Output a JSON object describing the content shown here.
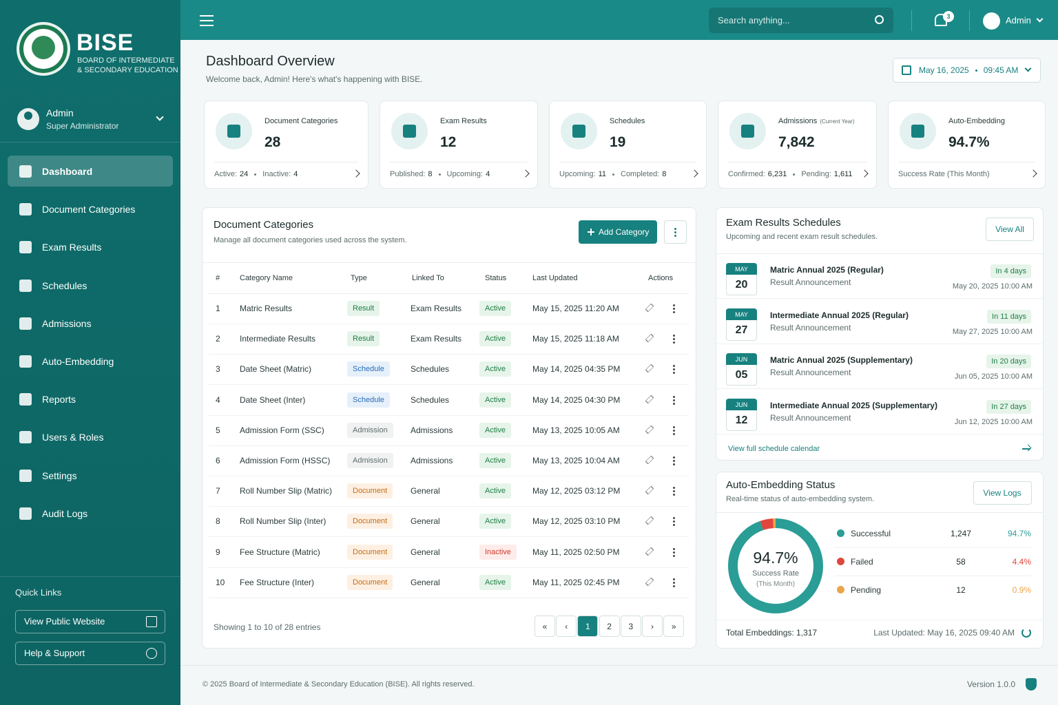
{
  "brand": {
    "name": "BISE",
    "line1": "BOARD OF INTERMEDIATE",
    "line2": "& SECONDARY EDUCATION"
  },
  "user": {
    "name": "Admin",
    "role": "Super Administrator"
  },
  "nav": [
    "Dashboard",
    "Document Categories",
    "Exam Results",
    "Schedules",
    "Admissions",
    "Auto-Embedding",
    "Reports",
    "Users & Roles",
    "Settings",
    "Audit Logs"
  ],
  "quick_links": {
    "title": "Quick Links",
    "items": [
      "View Public Website",
      "Help & Support"
    ]
  },
  "topbar": {
    "search_placeholder": "Search anything...",
    "notifications": "3",
    "user": "Admin"
  },
  "header": {
    "title": "Dashboard Overview",
    "subtitle": "Welcome back, Admin! Here's what's happening with BISE.",
    "date": "May 16, 2025",
    "time": "09:45 AM"
  },
  "stats": [
    {
      "label": "Document Categories",
      "value": "28",
      "details": [
        {
          "key": "Active:",
          "value": "24"
        },
        {
          "key": "Inactive:",
          "value": "4"
        }
      ]
    },
    {
      "label": "Exam Results",
      "value": "12",
      "details": [
        {
          "key": "Published:",
          "value": "8"
        },
        {
          "key": "Upcoming:",
          "value": "4"
        }
      ]
    },
    {
      "label": "Schedules",
      "value": "19",
      "details": [
        {
          "key": "Upcoming:",
          "value": "11"
        },
        {
          "key": "Completed:",
          "value": "8"
        }
      ]
    },
    {
      "label": "Admissions",
      "label_note": "(Current Year)",
      "value": "7,842",
      "details": [
        {
          "key": "Confirmed:",
          "value": "6,231"
        },
        {
          "key": "Pending:",
          "value": "1,611"
        }
      ]
    },
    {
      "label": "Auto-Embedding",
      "value": "94.7%",
      "details": [
        {
          "key": "Success Rate (This Month)"
        }
      ]
    }
  ],
  "doc_table": {
    "title": "Document Categories",
    "subtitle": "Manage all document categories used across the system.",
    "add_button": "Add Category",
    "columns": [
      "#",
      "Category Name",
      "Type",
      "Linked To",
      "Status",
      "Last Updated",
      "Actions"
    ],
    "rows": [
      {
        "no": "1",
        "name": "Matric Results",
        "type": "Result",
        "tone": "green",
        "linked": "Exam Results",
        "status": "Active",
        "status_tone": "green",
        "updated": "May 15, 2025 11:20 AM"
      },
      {
        "no": "2",
        "name": "Intermediate Results",
        "type": "Result",
        "tone": "green",
        "linked": "Exam Results",
        "status": "Active",
        "status_tone": "green",
        "updated": "May 15, 2025 11:18 AM"
      },
      {
        "no": "3",
        "name": "Date Sheet (Matric)",
        "type": "Schedule",
        "tone": "blue",
        "linked": "Schedules",
        "status": "Active",
        "status_tone": "green",
        "updated": "May 14, 2025 04:35 PM"
      },
      {
        "no": "4",
        "name": "Date Sheet (Inter)",
        "type": "Schedule",
        "tone": "blue",
        "linked": "Schedules",
        "status": "Active",
        "status_tone": "green",
        "updated": "May 14, 2025 04:30 PM"
      },
      {
        "no": "5",
        "name": "Admission Form (SSC)",
        "type": "Admission",
        "tone": "gray",
        "linked": "Admissions",
        "status": "Active",
        "status_tone": "green",
        "updated": "May 13, 2025 10:05 AM"
      },
      {
        "no": "6",
        "name": "Admission Form (HSSC)",
        "type": "Admission",
        "tone": "gray",
        "linked": "Admissions",
        "status": "Active",
        "status_tone": "green",
        "updated": "May 13, 2025 10:04 AM"
      },
      {
        "no": "7",
        "name": "Roll Number Slip (Matric)",
        "type": "Document",
        "tone": "orange",
        "linked": "General",
        "status": "Active",
        "status_tone": "green",
        "updated": "May 12, 2025 03:12 PM"
      },
      {
        "no": "8",
        "name": "Roll Number Slip (Inter)",
        "type": "Document",
        "tone": "orange",
        "linked": "General",
        "status": "Active",
        "status_tone": "green",
        "updated": "May 12, 2025 03:10 PM"
      },
      {
        "no": "9",
        "name": "Fee Structure (Matric)",
        "type": "Document",
        "tone": "orange",
        "linked": "General",
        "status": "Inactive",
        "status_tone": "red",
        "updated": "May 11, 2025 02:50 PM"
      },
      {
        "no": "10",
        "name": "Fee Structure (Inter)",
        "type": "Document",
        "tone": "orange",
        "linked": "General",
        "status": "Active",
        "status_tone": "green",
        "updated": "May 11, 2025 02:45 PM"
      }
    ],
    "footer": "Showing 1 to 10 of 28 entries",
    "pages": [
      "«",
      "‹",
      "1",
      "2",
      "3",
      "›",
      "»"
    ]
  },
  "schedules": {
    "title": "Exam Results Schedules",
    "subtitle": "Upcoming and recent exam result schedules.",
    "view_all": "View All",
    "items": [
      {
        "month": "MAY",
        "day": "20",
        "name": "Matric Annual 2025 (Regular)",
        "kind": "Result Announcement",
        "due": "In 4 days",
        "datetime": "May 20, 2025 10:00 AM"
      },
      {
        "month": "MAY",
        "day": "27",
        "name": "Intermediate Annual 2025 (Regular)",
        "kind": "Result Announcement",
        "due": "In 11 days",
        "datetime": "May 27, 2025 10:00 AM"
      },
      {
        "month": "JUN",
        "day": "05",
        "name": "Matric Annual 2025 (Supplementary)",
        "kind": "Result Announcement",
        "due": "In 20 days",
        "datetime": "Jun 05, 2025 10:00 AM"
      },
      {
        "month": "JUN",
        "day": "12",
        "name": "Intermediate Annual 2025 (Supplementary)",
        "kind": "Result Announcement",
        "due": "In 27 days",
        "datetime": "Jun 12, 2025 10:00 AM"
      }
    ],
    "footer_link": "View full schedule calendar"
  },
  "embedding": {
    "title": "Auto-Embedding Status",
    "subtitle": "Real-time status of auto-embedding system.",
    "button": "View Logs",
    "center_value": "94.7%",
    "center_label": "Success Rate",
    "center_sub": "(This Month)",
    "segments": [
      {
        "name": "Successful",
        "count": {
          "value": 1247,
          "label": "1,247"
        },
        "percent": "94.7%",
        "color": "#2a9d96"
      },
      {
        "name": "Failed",
        "count": {
          "value": 58,
          "label": "58"
        },
        "percent": "4.4%",
        "color": "#e0463e"
      },
      {
        "name": "Pending",
        "count": {
          "value": 12,
          "label": "12"
        },
        "percent": "0.9%",
        "color": "#eba54a"
      }
    ],
    "total": "Total Embeddings: 1,317",
    "updated": "Last Updated: May 16, 2025 09:40 AM"
  },
  "footer": {
    "copyright": "© 2025 Board of Intermediate & Secondary Education (BISE). All rights reserved.",
    "version": "Version 1.0.0"
  }
}
